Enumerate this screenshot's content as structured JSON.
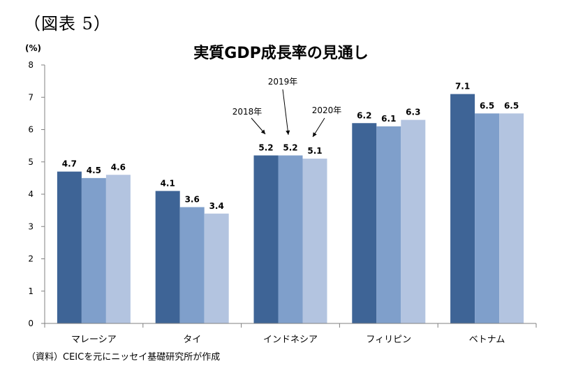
{
  "figure_label": "（図表 5）",
  "source_note": "（資料）CEICを元にニッセイ基礎研究所が作成",
  "colors": {
    "s2018": "#3e6496",
    "s2019": "#7f9fcb",
    "s2020": "#b3c4e0",
    "axis": "#808080"
  },
  "chart_data": {
    "type": "bar",
    "title": "実質GDP成長率の見通し",
    "ylabel": "(%)",
    "ylim": [
      0,
      8
    ],
    "yticks": [
      0,
      1,
      2,
      3,
      4,
      5,
      6,
      7,
      8
    ],
    "categories": [
      "マレーシア",
      "タイ",
      "インドネシア",
      "フィリピン",
      "ベトナム"
    ],
    "series": [
      {
        "name": "2018年",
        "values": [
          4.7,
          4.1,
          5.2,
          6.2,
          7.1
        ]
      },
      {
        "name": "2019年",
        "values": [
          4.5,
          3.6,
          5.2,
          6.1,
          6.5
        ]
      },
      {
        "name": "2020年",
        "values": [
          4.6,
          3.4,
          5.1,
          6.3,
          6.5
        ]
      }
    ],
    "grid": false
  }
}
